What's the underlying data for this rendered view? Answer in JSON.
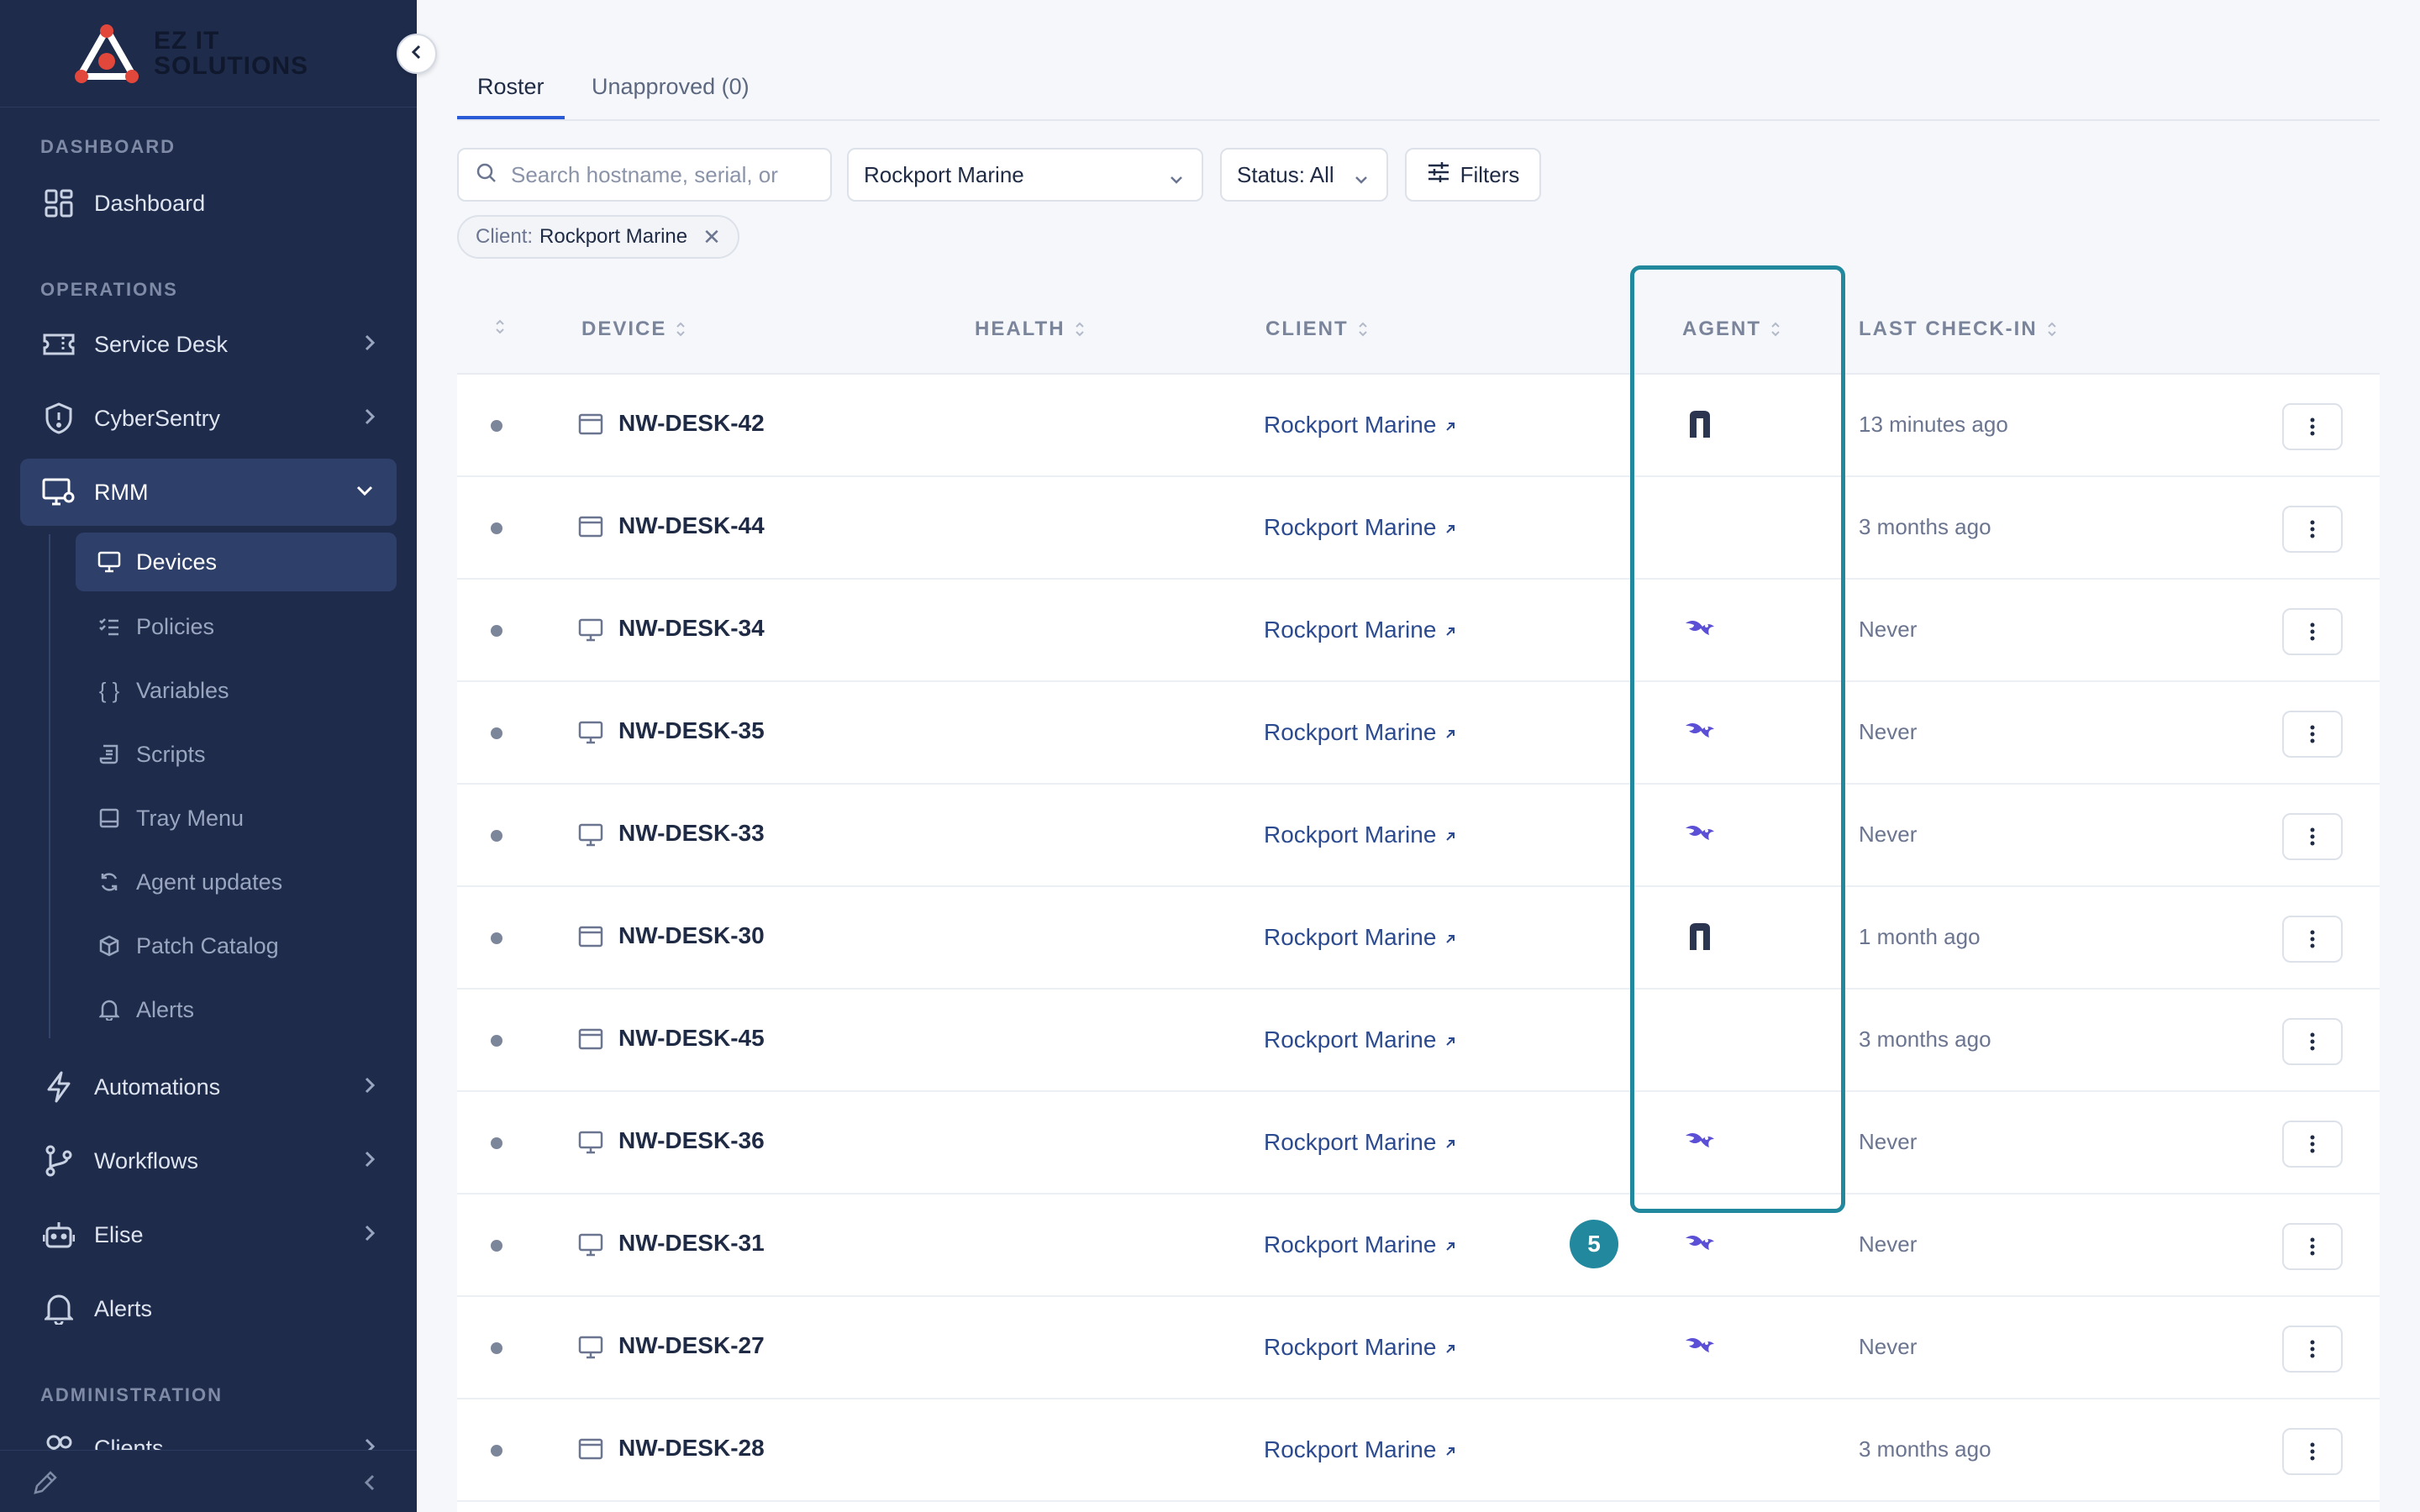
{
  "brand": {
    "line1": "EZ IT",
    "line2": "SOLUTIONS"
  },
  "sidebar": {
    "sections": {
      "dashboard": "DASHBOARD",
      "operations": "OPERATIONS",
      "administration": "ADMINISTRATION"
    },
    "items": {
      "dashboard": "Dashboard",
      "service_desk": "Service Desk",
      "cybersentry": "CyberSentry",
      "rmm": "RMM",
      "automations": "Automations",
      "workflows": "Workflows",
      "elise": "Elise",
      "alerts": "Alerts",
      "clients": "Clients"
    },
    "rmm_children": {
      "devices": "Devices",
      "policies": "Policies",
      "variables": "Variables",
      "scripts": "Scripts",
      "tray_menu": "Tray Menu",
      "agent_updates": "Agent updates",
      "patch_catalog": "Patch Catalog",
      "alerts": "Alerts"
    }
  },
  "tabs": {
    "roster": "Roster",
    "unapproved": "Unapproved (0)"
  },
  "toolbar": {
    "search_placeholder": "Search hostname, serial, or",
    "client_select": "Rockport Marine",
    "status_select": "Status: All",
    "filters": "Filters"
  },
  "chip": {
    "key": "Client:",
    "value": "Rockport Marine"
  },
  "table": {
    "headers": {
      "device": "DEVICE",
      "health": "HEALTH",
      "client": "CLIENT",
      "agent": "AGENT",
      "last_checkin": "LAST CHECK-IN"
    },
    "rows": [
      {
        "device": "NW-DESK-42",
        "type": "window",
        "client": "Rockport Marine",
        "agent": "n-agent",
        "checkin": "13 minutes ago"
      },
      {
        "device": "NW-DESK-44",
        "type": "window",
        "client": "Rockport Marine",
        "agent": "none",
        "checkin": "3 months ago"
      },
      {
        "device": "NW-DESK-34",
        "type": "monitor",
        "client": "Rockport Marine",
        "agent": "bird-agent",
        "checkin": "Never"
      },
      {
        "device": "NW-DESK-35",
        "type": "monitor",
        "client": "Rockport Marine",
        "agent": "bird-agent",
        "checkin": "Never"
      },
      {
        "device": "NW-DESK-33",
        "type": "monitor",
        "client": "Rockport Marine",
        "agent": "bird-agent",
        "checkin": "Never"
      },
      {
        "device": "NW-DESK-30",
        "type": "window",
        "client": "Rockport Marine",
        "agent": "n-agent",
        "checkin": "1 month ago"
      },
      {
        "device": "NW-DESK-45",
        "type": "window",
        "client": "Rockport Marine",
        "agent": "none",
        "checkin": "3 months ago"
      },
      {
        "device": "NW-DESK-36",
        "type": "monitor",
        "client": "Rockport Marine",
        "agent": "bird-agent",
        "checkin": "Never"
      },
      {
        "device": "NW-DESK-31",
        "type": "monitor",
        "client": "Rockport Marine",
        "agent": "bird-agent",
        "checkin": "Never"
      },
      {
        "device": "NW-DESK-27",
        "type": "monitor",
        "client": "Rockport Marine",
        "agent": "bird-agent",
        "checkin": "Never"
      },
      {
        "device": "NW-DESK-28",
        "type": "window",
        "client": "Rockport Marine",
        "agent": "none",
        "checkin": "3 months ago"
      }
    ]
  },
  "annotation": {
    "step": "5"
  },
  "colors": {
    "sidebar_bg": "#1e2b4b",
    "accent": "#2a5bd7",
    "highlight": "#22889e",
    "agent_bird": "#5b4fd6",
    "agent_n": "#2b3550"
  }
}
